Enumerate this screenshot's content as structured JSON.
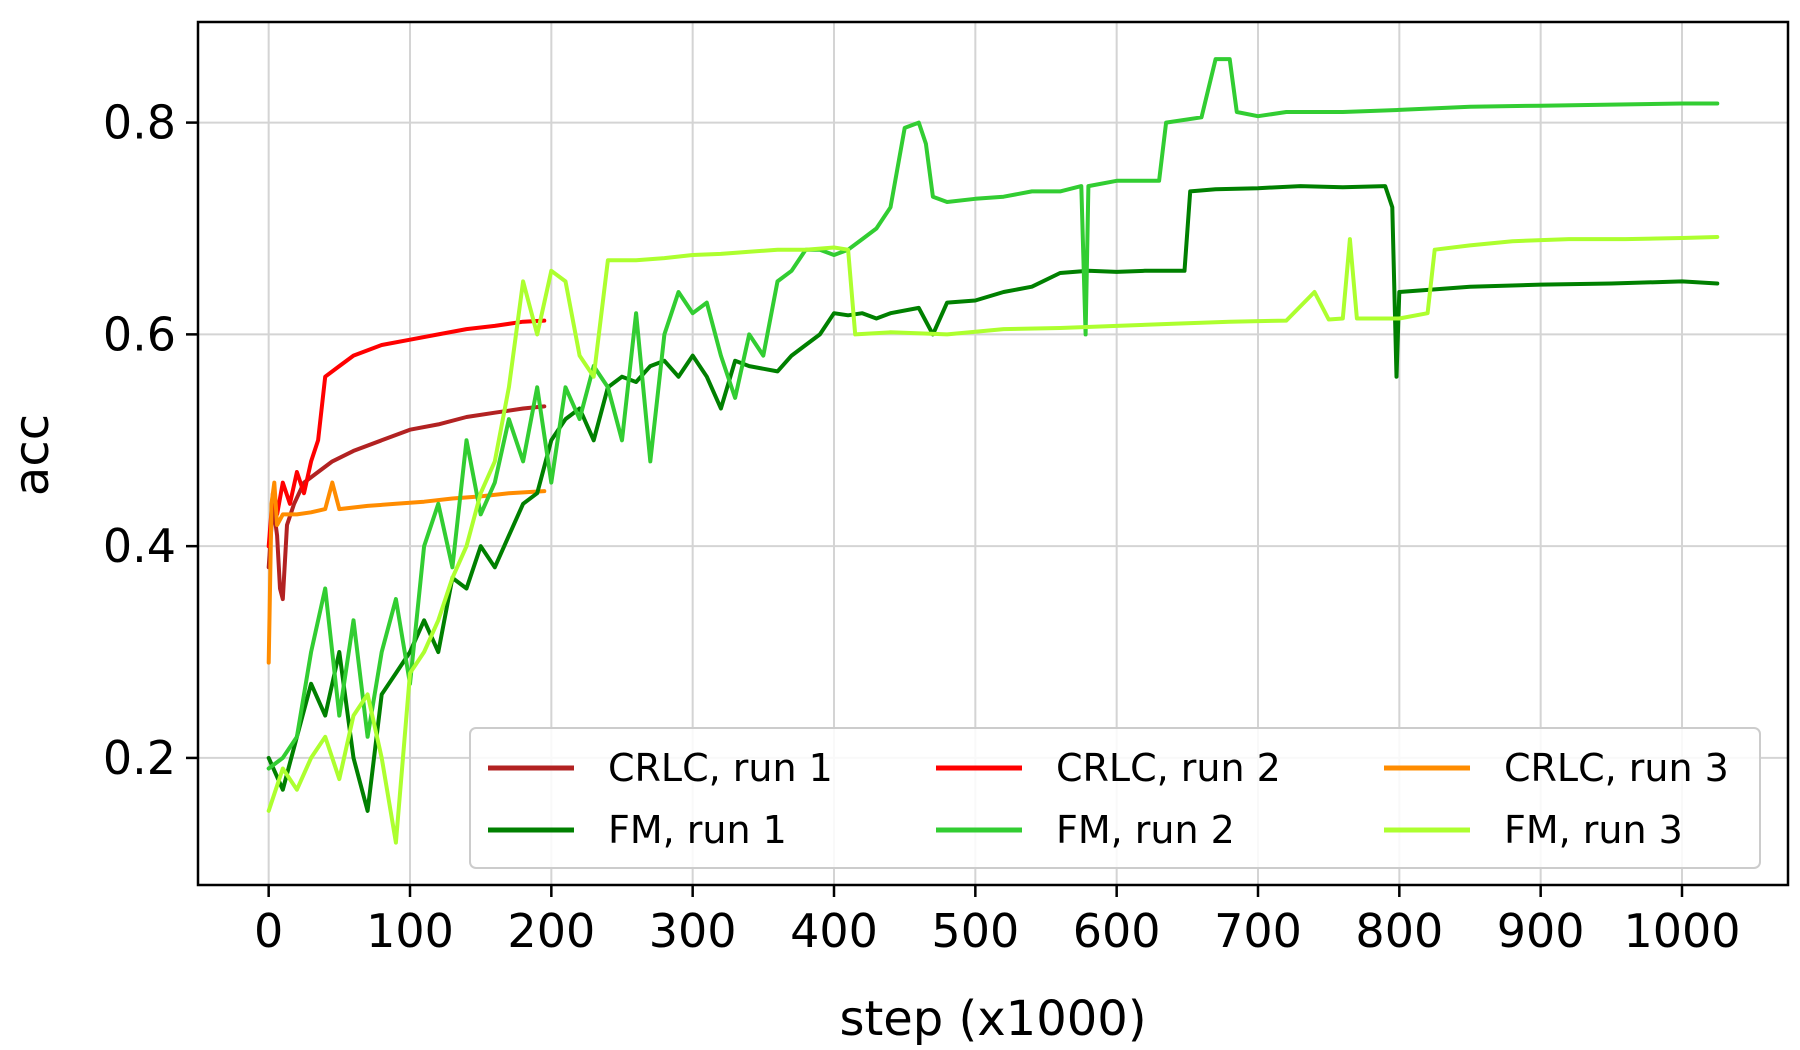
{
  "chart_data": {
    "type": "line",
    "title": "",
    "xlabel": "step (x1000)",
    "ylabel": "acc",
    "xlim": [
      -50,
      1075
    ],
    "ylim": [
      0.08,
      0.895
    ],
    "x_ticks": [
      0,
      100,
      200,
      300,
      400,
      500,
      600,
      700,
      800,
      900,
      1000
    ],
    "x_tick_labels": [
      "0",
      "100",
      "200",
      "300",
      "400",
      "500",
      "600",
      "700",
      "800",
      "900",
      "1000"
    ],
    "y_ticks": [
      0.2,
      0.4,
      0.6,
      0.8
    ],
    "y_tick_labels": [
      "0.2",
      "0.4",
      "0.6",
      "0.8"
    ],
    "grid": true,
    "legend_position": "lower-right",
    "legend_columns": 3,
    "series": [
      {
        "name": "CRLC, run 1",
        "color": "#b22222",
        "points": [
          [
            0,
            0.38
          ],
          [
            3,
            0.44
          ],
          [
            6,
            0.41
          ],
          [
            8,
            0.36
          ],
          [
            10,
            0.35
          ],
          [
            13,
            0.42
          ],
          [
            18,
            0.44
          ],
          [
            25,
            0.46
          ],
          [
            35,
            0.47
          ],
          [
            45,
            0.48
          ],
          [
            60,
            0.49
          ],
          [
            80,
            0.5
          ],
          [
            100,
            0.51
          ],
          [
            120,
            0.515
          ],
          [
            140,
            0.522
          ],
          [
            160,
            0.526
          ],
          [
            180,
            0.53
          ],
          [
            195,
            0.532
          ]
        ]
      },
      {
        "name": "CRLC, run 2",
        "color": "#ff0000",
        "points": [
          [
            0,
            0.4
          ],
          [
            3,
            0.45
          ],
          [
            6,
            0.43
          ],
          [
            10,
            0.46
          ],
          [
            15,
            0.44
          ],
          [
            20,
            0.47
          ],
          [
            25,
            0.45
          ],
          [
            30,
            0.48
          ],
          [
            35,
            0.5
          ],
          [
            40,
            0.56
          ],
          [
            50,
            0.57
          ],
          [
            60,
            0.58
          ],
          [
            80,
            0.59
          ],
          [
            100,
            0.595
          ],
          [
            120,
            0.6
          ],
          [
            140,
            0.605
          ],
          [
            160,
            0.608
          ],
          [
            180,
            0.612
          ],
          [
            195,
            0.613
          ]
        ]
      },
      {
        "name": "CRLC, run 3",
        "color": "#ff8c00",
        "points": [
          [
            0,
            0.29
          ],
          [
            2,
            0.44
          ],
          [
            4,
            0.46
          ],
          [
            6,
            0.42
          ],
          [
            10,
            0.43
          ],
          [
            20,
            0.43
          ],
          [
            30,
            0.432
          ],
          [
            40,
            0.435
          ],
          [
            45,
            0.46
          ],
          [
            50,
            0.435
          ],
          [
            70,
            0.438
          ],
          [
            90,
            0.44
          ],
          [
            110,
            0.442
          ],
          [
            130,
            0.445
          ],
          [
            150,
            0.447
          ],
          [
            170,
            0.45
          ],
          [
            195,
            0.452
          ]
        ]
      },
      {
        "name": "FM, run 1",
        "color": "#008000",
        "points": [
          [
            0,
            0.2
          ],
          [
            10,
            0.17
          ],
          [
            20,
            0.22
          ],
          [
            30,
            0.27
          ],
          [
            40,
            0.24
          ],
          [
            50,
            0.3
          ],
          [
            60,
            0.2
          ],
          [
            70,
            0.15
          ],
          [
            80,
            0.26
          ],
          [
            90,
            0.28
          ],
          [
            100,
            0.3
          ],
          [
            110,
            0.33
          ],
          [
            120,
            0.3
          ],
          [
            130,
            0.37
          ],
          [
            140,
            0.36
          ],
          [
            150,
            0.4
          ],
          [
            160,
            0.38
          ],
          [
            170,
            0.41
          ],
          [
            180,
            0.44
          ],
          [
            190,
            0.45
          ],
          [
            200,
            0.5
          ],
          [
            210,
            0.52
          ],
          [
            220,
            0.53
          ],
          [
            230,
            0.5
          ],
          [
            240,
            0.55
          ],
          [
            250,
            0.56
          ],
          [
            260,
            0.555
          ],
          [
            270,
            0.57
          ],
          [
            280,
            0.575
          ],
          [
            290,
            0.56
          ],
          [
            300,
            0.58
          ],
          [
            310,
            0.56
          ],
          [
            320,
            0.53
          ],
          [
            330,
            0.575
          ],
          [
            340,
            0.57
          ],
          [
            360,
            0.565
          ],
          [
            370,
            0.58
          ],
          [
            380,
            0.59
          ],
          [
            390,
            0.6
          ],
          [
            400,
            0.62
          ],
          [
            410,
            0.618
          ],
          [
            420,
            0.62
          ],
          [
            430,
            0.615
          ],
          [
            440,
            0.62
          ],
          [
            460,
            0.625
          ],
          [
            470,
            0.6
          ],
          [
            480,
            0.63
          ],
          [
            500,
            0.632
          ],
          [
            520,
            0.64
          ],
          [
            540,
            0.645
          ],
          [
            560,
            0.658
          ],
          [
            580,
            0.66
          ],
          [
            600,
            0.659
          ],
          [
            620,
            0.66
          ],
          [
            648,
            0.66
          ],
          [
            652,
            0.735
          ],
          [
            670,
            0.737
          ],
          [
            700,
            0.738
          ],
          [
            730,
            0.74
          ],
          [
            760,
            0.739
          ],
          [
            790,
            0.74
          ],
          [
            795,
            0.72
          ],
          [
            798,
            0.56
          ],
          [
            800,
            0.64
          ],
          [
            850,
            0.645
          ],
          [
            900,
            0.647
          ],
          [
            950,
            0.648
          ],
          [
            1000,
            0.65
          ],
          [
            1025,
            0.648
          ]
        ]
      },
      {
        "name": "FM, run 2",
        "color": "#32cd32",
        "points": [
          [
            0,
            0.19
          ],
          [
            10,
            0.2
          ],
          [
            20,
            0.22
          ],
          [
            30,
            0.3
          ],
          [
            40,
            0.36
          ],
          [
            50,
            0.24
          ],
          [
            60,
            0.33
          ],
          [
            70,
            0.22
          ],
          [
            80,
            0.3
          ],
          [
            90,
            0.35
          ],
          [
            100,
            0.27
          ],
          [
            110,
            0.4
          ],
          [
            120,
            0.44
          ],
          [
            130,
            0.38
          ],
          [
            140,
            0.5
          ],
          [
            150,
            0.43
          ],
          [
            160,
            0.46
          ],
          [
            170,
            0.52
          ],
          [
            180,
            0.48
          ],
          [
            190,
            0.55
          ],
          [
            200,
            0.46
          ],
          [
            210,
            0.55
          ],
          [
            220,
            0.52
          ],
          [
            230,
            0.57
          ],
          [
            240,
            0.55
          ],
          [
            250,
            0.5
          ],
          [
            260,
            0.62
          ],
          [
            270,
            0.48
          ],
          [
            280,
            0.6
          ],
          [
            290,
            0.64
          ],
          [
            300,
            0.62
          ],
          [
            310,
            0.63
          ],
          [
            320,
            0.58
          ],
          [
            330,
            0.54
          ],
          [
            340,
            0.6
          ],
          [
            350,
            0.58
          ],
          [
            360,
            0.65
          ],
          [
            370,
            0.66
          ],
          [
            380,
            0.68
          ],
          [
            390,
            0.68
          ],
          [
            400,
            0.675
          ],
          [
            410,
            0.68
          ],
          [
            420,
            0.69
          ],
          [
            430,
            0.7
          ],
          [
            440,
            0.72
          ],
          [
            450,
            0.795
          ],
          [
            460,
            0.8
          ],
          [
            465,
            0.78
          ],
          [
            470,
            0.73
          ],
          [
            480,
            0.725
          ],
          [
            500,
            0.728
          ],
          [
            520,
            0.73
          ],
          [
            540,
            0.735
          ],
          [
            560,
            0.735
          ],
          [
            575,
            0.74
          ],
          [
            578,
            0.6
          ],
          [
            580,
            0.74
          ],
          [
            600,
            0.745
          ],
          [
            620,
            0.745
          ],
          [
            630,
            0.745
          ],
          [
            635,
            0.8
          ],
          [
            660,
            0.805
          ],
          [
            670,
            0.86
          ],
          [
            680,
            0.86
          ],
          [
            685,
            0.81
          ],
          [
            700,
            0.806
          ],
          [
            720,
            0.81
          ],
          [
            760,
            0.81
          ],
          [
            800,
            0.812
          ],
          [
            850,
            0.815
          ],
          [
            900,
            0.816
          ],
          [
            950,
            0.817
          ],
          [
            1000,
            0.818
          ],
          [
            1025,
            0.818
          ]
        ]
      },
      {
        "name": "FM, run 3",
        "color": "#adff2f",
        "points": [
          [
            0,
            0.15
          ],
          [
            10,
            0.19
          ],
          [
            20,
            0.17
          ],
          [
            30,
            0.2
          ],
          [
            40,
            0.22
          ],
          [
            50,
            0.18
          ],
          [
            60,
            0.24
          ],
          [
            70,
            0.26
          ],
          [
            80,
            0.2
          ],
          [
            90,
            0.12
          ],
          [
            100,
            0.28
          ],
          [
            110,
            0.3
          ],
          [
            120,
            0.33
          ],
          [
            130,
            0.37
          ],
          [
            140,
            0.4
          ],
          [
            150,
            0.45
          ],
          [
            160,
            0.48
          ],
          [
            170,
            0.55
          ],
          [
            180,
            0.65
          ],
          [
            190,
            0.6
          ],
          [
            195,
            0.63
          ],
          [
            200,
            0.66
          ],
          [
            210,
            0.65
          ],
          [
            220,
            0.58
          ],
          [
            230,
            0.56
          ],
          [
            240,
            0.67
          ],
          [
            260,
            0.67
          ],
          [
            280,
            0.672
          ],
          [
            300,
            0.675
          ],
          [
            320,
            0.676
          ],
          [
            340,
            0.678
          ],
          [
            360,
            0.68
          ],
          [
            380,
            0.68
          ],
          [
            400,
            0.682
          ],
          [
            410,
            0.68
          ],
          [
            415,
            0.6
          ],
          [
            440,
            0.602
          ],
          [
            480,
            0.6
          ],
          [
            520,
            0.605
          ],
          [
            560,
            0.606
          ],
          [
            600,
            0.608
          ],
          [
            640,
            0.61
          ],
          [
            680,
            0.612
          ],
          [
            720,
            0.613
          ],
          [
            740,
            0.64
          ],
          [
            750,
            0.614
          ],
          [
            760,
            0.615
          ],
          [
            765,
            0.69
          ],
          [
            770,
            0.615
          ],
          [
            800,
            0.615
          ],
          [
            820,
            0.62
          ],
          [
            825,
            0.68
          ],
          [
            850,
            0.684
          ],
          [
            880,
            0.688
          ],
          [
            920,
            0.69
          ],
          [
            960,
            0.69
          ],
          [
            1000,
            0.691
          ],
          [
            1025,
            0.692
          ]
        ]
      }
    ]
  }
}
